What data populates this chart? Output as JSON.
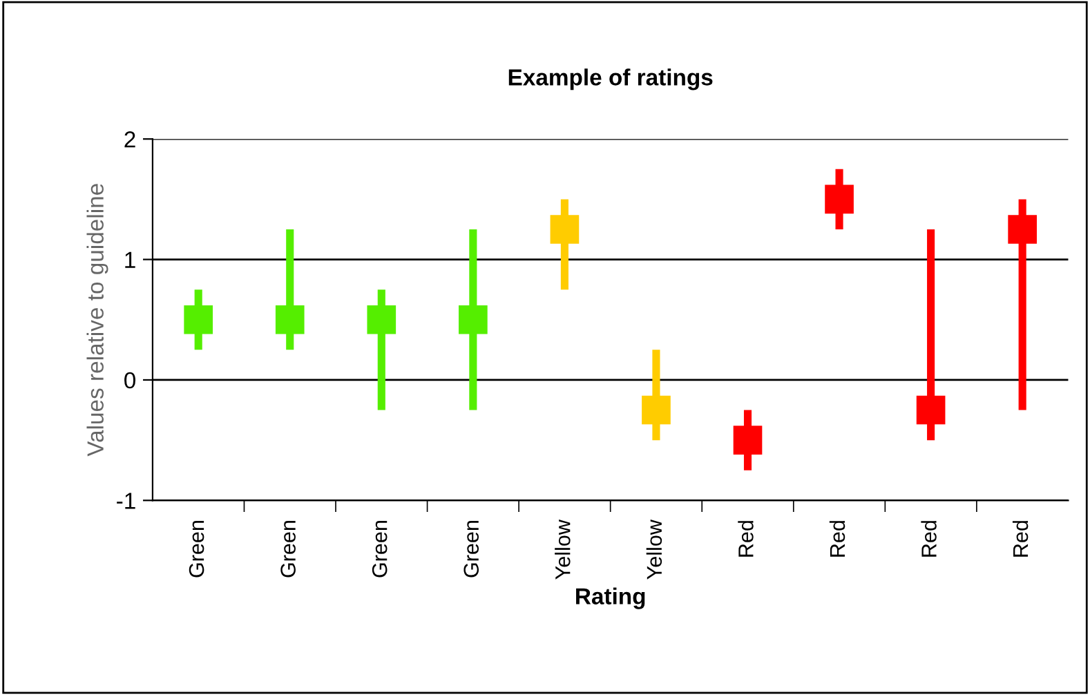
{
  "chart_data": {
    "type": "scatter",
    "title": "Example of ratings",
    "xlabel": "Rating",
    "ylabel": "Values relative to guideline",
    "categories": [
      "Green",
      "Green",
      "Green",
      "Green",
      "Yellow",
      "Yellow",
      "Red",
      "Red",
      "Red",
      "Red"
    ],
    "values": [
      0.5,
      0.5,
      0.5,
      0.5,
      1.25,
      -0.25,
      -0.5,
      1.5,
      -0.25,
      1.25
    ],
    "errors": [
      [
        0.25,
        0.75
      ],
      [
        0.25,
        1.25
      ],
      [
        -0.25,
        0.75
      ],
      [
        -0.25,
        1.25
      ],
      [
        0.75,
        1.5
      ],
      [
        -0.5,
        0.25
      ],
      [
        -0.75,
        -0.25
      ],
      [
        1.25,
        1.75
      ],
      [
        -0.5,
        1.25
      ],
      [
        -0.25,
        1.5
      ]
    ],
    "colors": [
      "#55ee00",
      "#55ee00",
      "#55ee00",
      "#55ee00",
      "#ffcc00",
      "#ffcc00",
      "#ff0000",
      "#ff0000",
      "#ff0000",
      "#ff0000"
    ],
    "ylim": [
      -1,
      2
    ],
    "yticks": [
      -1,
      0,
      1,
      2
    ],
    "grid": "y",
    "marker": "square",
    "legend": false
  }
}
